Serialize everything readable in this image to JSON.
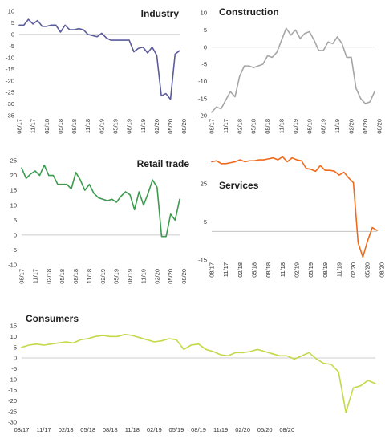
{
  "chart_data": [
    {
      "type": "line",
      "title": "Industry",
      "color": "#5b5b9b",
      "ylim": [
        -35,
        10
      ],
      "yticks": [
        -35,
        -30,
        -25,
        -20,
        -15,
        -10,
        -5,
        0,
        5,
        10
      ],
      "xtick_labels": [
        "08/17",
        "11/17",
        "02/18",
        "05/18",
        "08/18",
        "11/18",
        "02/19",
        "05/19",
        "08/19",
        "11/19",
        "02/20",
        "05/20",
        "08/20"
      ],
      "values": [
        4,
        4,
        6.5,
        4.5,
        6,
        3.5,
        3.5,
        4,
        4,
        1,
        4,
        2,
        2,
        2.5,
        2,
        0,
        -0.5,
        -1,
        0.5,
        -1.5,
        -2.5,
        -2.5,
        -2.5,
        -2.5,
        -2.5,
        -7.5,
        -6,
        -5.5,
        -8,
        -5.5,
        -9,
        -26.5,
        -25.5,
        -28,
        -8.5,
        -7
      ]
    },
    {
      "type": "line",
      "title": "Construction",
      "color": "#a6a6a6",
      "ylim": [
        -20,
        10
      ],
      "yticks": [
        -20,
        -15,
        -10,
        -5,
        0,
        5,
        10
      ],
      "xtick_labels": [
        "08/17",
        "11/17",
        "02/18",
        "05/18",
        "08/18",
        "11/18",
        "02/19",
        "05/19",
        "08/19",
        "11/19",
        "02/20",
        "05/20",
        "08/20"
      ],
      "values": [
        -19,
        -17.5,
        -18,
        -15.5,
        -13,
        -14.5,
        -8.5,
        -5.5,
        -5.5,
        -6,
        -5.5,
        -5,
        -2.5,
        -3,
        -1.5,
        2,
        5.5,
        3.5,
        5,
        2.5,
        4,
        4.5,
        2,
        -1,
        -1,
        1.5,
        1,
        3,
        1,
        -3,
        -3,
        -12,
        -15,
        -16.5,
        -16,
        -13
      ]
    },
    {
      "type": "line",
      "title": "Retail trade",
      "color": "#3c9b4f",
      "ylim": [
        -10,
        25
      ],
      "yticks": [
        -10,
        -5,
        0,
        5,
        10,
        15,
        20,
        25
      ],
      "xtick_labels": [
        "08/17",
        "11/17",
        "02/18",
        "05/18",
        "08/18",
        "11/18",
        "02/19",
        "05/19",
        "08/19",
        "11/19",
        "02/20",
        "05/20",
        "08/20"
      ],
      "values": [
        22.5,
        19,
        20.5,
        21.5,
        20,
        23.5,
        20,
        20,
        17,
        17,
        17,
        15.5,
        21,
        18.5,
        15,
        17,
        14,
        12.5,
        12,
        11.5,
        12,
        11,
        13,
        14.5,
        13.5,
        8.5,
        14.5,
        10,
        14,
        18.5,
        16,
        -0.5,
        -0.5,
        7,
        5,
        12
      ]
    },
    {
      "type": "line",
      "title": "Services",
      "color": "#f06a1b",
      "ylim": [
        -15,
        35
      ],
      "yticks": [
        -15,
        5,
        25
      ],
      "xtick_labels": [
        "08/17",
        "11/17",
        "02/18",
        "05/18",
        "08/18",
        "11/18",
        "02/19",
        "05/19",
        "08/19",
        "11/19",
        "02/20",
        "05/20",
        "08/20"
      ],
      "values": [
        36.5,
        37,
        35.5,
        35.5,
        36,
        36.5,
        37.5,
        36.5,
        37,
        37,
        37.5,
        37.5,
        38,
        38.5,
        37.5,
        39,
        36.5,
        38.5,
        37.5,
        37,
        33,
        32.5,
        31.5,
        34.5,
        32,
        32,
        31.5,
        29.5,
        31,
        28,
        25.5,
        -6,
        -13.5,
        -5,
        2,
        0.5
      ]
    },
    {
      "type": "line",
      "title": "Consumers",
      "color": "#c4d84a",
      "ylim": [
        -30,
        15
      ],
      "yticks": [
        -30,
        -25,
        -20,
        -15,
        -10,
        -5,
        0,
        5,
        10,
        15
      ],
      "xtick_labels": [
        "08/17",
        "11/17",
        "02/18",
        "05/18",
        "08/18",
        "11/18",
        "02/19",
        "05/19",
        "08/19",
        "11/19",
        "02/20",
        "05/20",
        "08/20"
      ],
      "values": [
        5,
        6,
        6.5,
        6,
        6.5,
        7,
        7.5,
        7,
        8.5,
        9,
        10,
        10.5,
        10,
        10,
        11,
        10.5,
        9.5,
        8.5,
        7.5,
        8,
        9,
        8.5,
        4,
        6,
        6.5,
        4,
        3,
        1.5,
        1,
        2.5,
        2.5,
        3,
        4,
        3,
        2,
        1,
        1,
        -0.5,
        1,
        2.5,
        -0.5,
        -2.5,
        -3,
        -6.5,
        -25.5,
        -14,
        -13,
        -10.5,
        -12
      ]
    }
  ]
}
